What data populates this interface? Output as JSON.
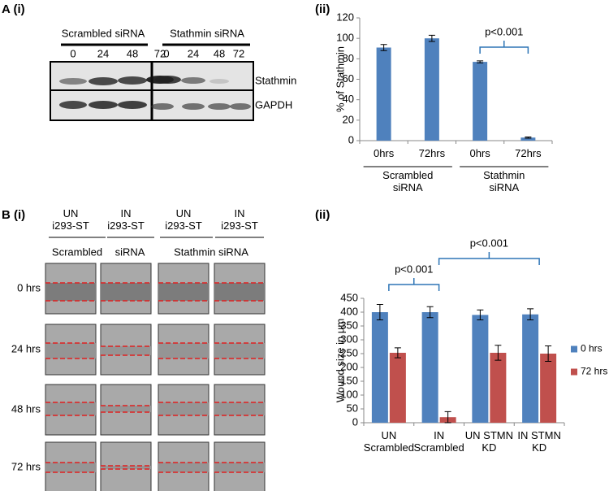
{
  "figure": {
    "panel_labels": [
      "A (i)",
      "(ii)",
      "B (i)",
      "(ii)"
    ],
    "blot": {
      "groups": [
        "Scrambled siRNA",
        "Stathmin siRNA"
      ],
      "lanes": [
        "0",
        "24",
        "48",
        "72",
        "0",
        "24",
        "48",
        "72"
      ],
      "bands": [
        "Stathmin",
        "GAPDH"
      ]
    },
    "wound": {
      "conditions": [
        "UN\ni293-ST",
        "IN\ni293-ST",
        "UN\ni293-ST",
        "IN\ni293-ST"
      ],
      "groups": [
        "Scrambled",
        "siRNA",
        "Stathmin siRNA"
      ],
      "times": [
        "0 hrs",
        "24 hrs",
        "48  hrs",
        "72  hrs"
      ]
    }
  },
  "chart_data": [
    {
      "type": "bar",
      "y_label": "% of Stathmin",
      "categories": [
        "0hrs",
        "72hrs",
        "0hrs",
        "72hrs"
      ],
      "groups": [
        "Scrambled\nsiRNA",
        "Stathmin\nsiRNA"
      ],
      "series": [
        {
          "color": "#4f81bd",
          "values": [
            91,
            100,
            77,
            3
          ],
          "errors": [
            3,
            3,
            1,
            0.6
          ]
        }
      ],
      "ylim": [
        0,
        120
      ],
      "yticks": [
        0,
        20,
        40,
        60,
        80,
        100,
        120
      ],
      "annotations": [
        "p<0.001"
      ]
    },
    {
      "type": "bar",
      "y_label": "Wound size in µm",
      "categories": [
        "UN\nScrambled",
        "IN\nScrambled",
        "UN STMN\nKD",
        "IN STMN\nKD"
      ],
      "series": [
        {
          "name": "0 hrs",
          "color": "#4f81bd",
          "values": [
            400,
            400,
            390,
            392
          ],
          "errors": [
            28,
            20,
            18,
            20
          ]
        },
        {
          "name": "72 hrs",
          "color": "#c0504d",
          "values": [
            253,
            20,
            253,
            250
          ],
          "errors": [
            18,
            20,
            27,
            28
          ]
        }
      ],
      "ylim": [
        0,
        450
      ],
      "yticks": [
        0,
        50,
        100,
        150,
        200,
        250,
        300,
        350,
        400,
        450
      ],
      "legend": "right",
      "annotations": [
        "p<0.001",
        "p<0.001"
      ]
    }
  ]
}
